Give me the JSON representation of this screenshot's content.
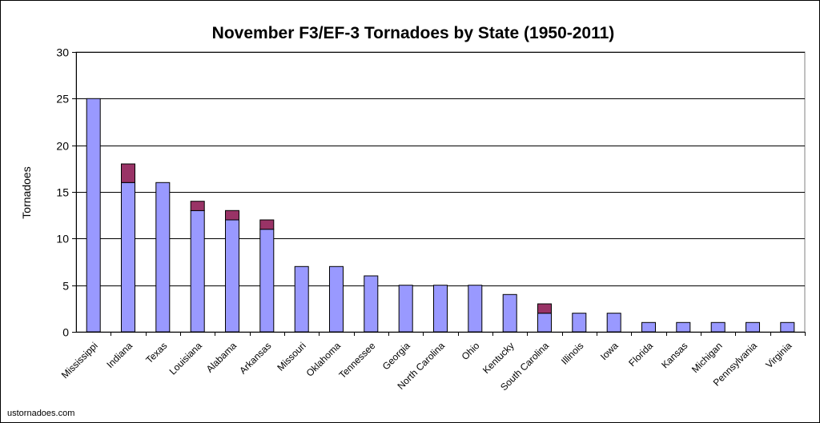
{
  "chart_data": {
    "type": "bar",
    "stacked": true,
    "title": "November F3/EF-3 Tornadoes by State (1950-2011)",
    "xlabel": "",
    "ylabel": "Tornadoes",
    "ylim": [
      0,
      30
    ],
    "yticks": [
      0,
      5,
      10,
      15,
      20,
      25,
      30
    ],
    "grid": true,
    "legend": "none",
    "categories": [
      "Mississippi",
      "Indiana",
      "Texas",
      "Louisiana",
      "Alabama",
      "Arkansas",
      "Missouri",
      "Oklahoma",
      "Tennessee",
      "Georgia",
      "North Carolina",
      "Ohio",
      "Kentucky",
      "South Carolina",
      "Illinois",
      "Iowa",
      "Florida",
      "Kansas",
      "Michigan",
      "Pennsylvania",
      "Virginia"
    ],
    "series": [
      {
        "color": "#9999ff",
        "values": [
          25,
          16,
          16,
          13,
          12,
          11,
          7,
          7,
          6,
          5,
          5,
          5,
          4,
          2,
          2,
          2,
          1,
          1,
          1,
          1,
          1
        ]
      },
      {
        "color": "#993366",
        "values": [
          0,
          2,
          0,
          1,
          1,
          1,
          0,
          0,
          0,
          0,
          0,
          0,
          0,
          1,
          0,
          0,
          0,
          0,
          0,
          0,
          0
        ]
      }
    ]
  },
  "credit": "ustornadoes.com"
}
